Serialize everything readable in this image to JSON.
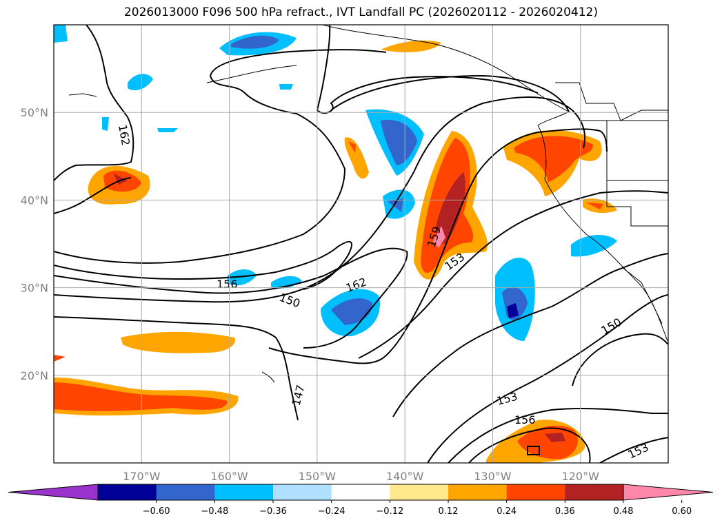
{
  "title": "2026013000 F096 500 hPa refract., IVT Landfall PC (2026020112 - 2026020412)",
  "map": {
    "lon_range": [
      -180,
      -110
    ],
    "lat_range": [
      10,
      60
    ],
    "lat_labels": [
      {
        "value": 50,
        "text": "50°N"
      },
      {
        "value": 40,
        "text": "40°N"
      },
      {
        "value": 30,
        "text": "30°N"
      },
      {
        "value": 20,
        "text": "20°N"
      }
    ],
    "lon_labels": [
      {
        "value": -170,
        "text": "170°W"
      },
      {
        "value": -160,
        "text": "160°W"
      },
      {
        "value": -150,
        "text": "150°W"
      },
      {
        "value": -140,
        "text": "140°W"
      },
      {
        "value": -130,
        "text": "130°W"
      },
      {
        "value": -120,
        "text": "120°W"
      }
    ],
    "grid": true,
    "contour_labels": [
      "162",
      "156",
      "150",
      "162",
      "159",
      "153",
      "150",
      "147",
      "153",
      "156",
      "153"
    ]
  },
  "colorbar": {
    "colors": [
      "#9933cc",
      "#000099",
      "#3366cc",
      "#00bfff",
      "#b0e0ff",
      "#ffffff",
      "#ffe98a",
      "#ffa500",
      "#ff4500",
      "#b22222",
      "#ff88aa"
    ],
    "ticks": [
      "−0.60",
      "−0.48",
      "−0.36",
      "−0.24",
      "−0.12",
      "0.12",
      "0.24",
      "0.36",
      "0.48",
      "0.60"
    ]
  }
}
